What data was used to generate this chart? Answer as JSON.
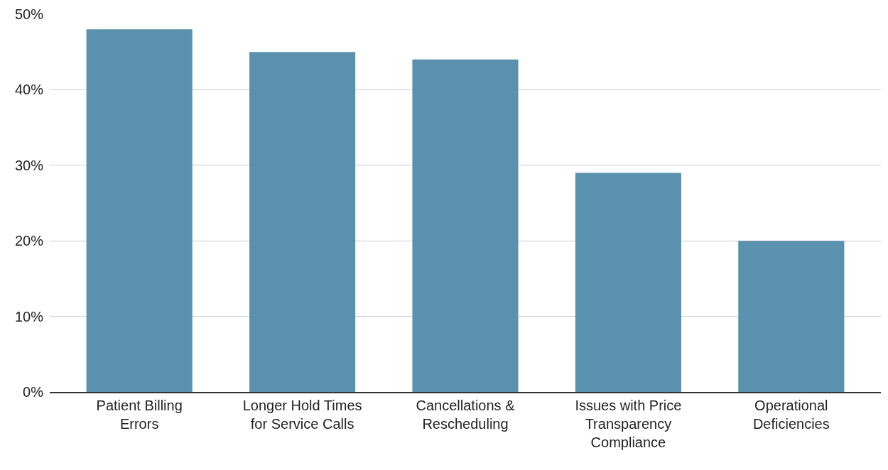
{
  "chart_data": {
    "type": "bar",
    "categories": [
      "Patient Billing Errors",
      "Longer Hold Times for Service Calls",
      "Cancellations & Rescheduling",
      "Issues with Price Transparency Compliance",
      "Operational Deficiencies"
    ],
    "values": [
      48,
      45,
      44,
      29,
      20
    ],
    "color": "#5a91ae",
    "ylim": [
      0,
      50
    ],
    "yticks": [
      {
        "value": 0,
        "label": "0%"
      },
      {
        "value": 10,
        "label": "10%"
      },
      {
        "value": 20,
        "label": "20%"
      },
      {
        "value": 30,
        "label": "30%"
      },
      {
        "value": 40,
        "label": "40%"
      },
      {
        "value": 50,
        "label": "50%"
      }
    ],
    "grid": "y",
    "legend": false
  }
}
